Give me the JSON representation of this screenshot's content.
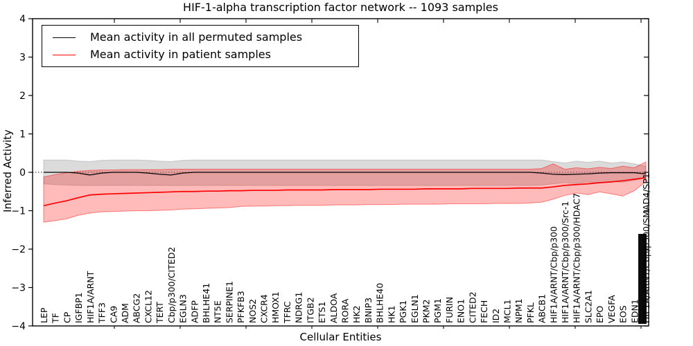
{
  "chart_data": {
    "type": "line",
    "title": "HIF-1-alpha transcription factor network -- 1093 samples",
    "xlabel": "Cellular Entities",
    "ylabel": "Inferred Activity",
    "ylim": [
      -4,
      4
    ],
    "y_ticks": [
      -4,
      -3,
      -2,
      -1,
      0,
      1,
      2,
      3,
      4
    ],
    "grid": "dotted horizontal line at y=0 only",
    "legend_position": "upper left",
    "x_tick_label_rotation_deg": 90,
    "categories": [
      "LEP",
      "TF",
      "CP",
      "IGFBP1",
      "HIF1A/ARNT",
      "TFF3",
      "CA9",
      "ADM",
      "ABCG2",
      "CXCL12",
      "TERT",
      "Cbp/p300/CITED2",
      "EGLN3",
      "ADFP",
      "BHLHE41",
      "NT5E",
      "SERPINE1",
      "PFKFB3",
      "NOS2",
      "CXCR4",
      "HMOX1",
      "TFRC",
      "NDRG1",
      "ITGB2",
      "ETS1",
      "ALDOA",
      "RORA",
      "HK2",
      "BNIP3",
      "BHLHE40",
      "HK1",
      "PGK1",
      "EGLN1",
      "PKM2",
      "PGM1",
      "FURIN",
      "ENO1",
      "CITED2",
      "FECH",
      "ID2",
      "MCL1",
      "NPM1",
      "PFKL",
      "ABCB1",
      "HIF1A/ARNT/Cbp/p300",
      "HIF1A/ARNT/Cbp/p300/Src-1",
      "HIF1A/ARNT/Cbp/p300/HDAC7",
      "SLC2A1",
      "EPO",
      "VEGFA",
      "EOS",
      "EDN1",
      "HIF1A/ARNT/Cbp/p300/SMAD4/SP1"
    ],
    "series": [
      {
        "name": "Mean activity in all permuted samples",
        "color": "#000000",
        "values": [
          0,
          0,
          0,
          -0.02,
          -0.07,
          -0.02,
          0,
          0,
          0,
          -0.02,
          -0.05,
          -0.07,
          -0.02,
          0,
          0,
          0,
          0,
          0,
          0,
          0,
          0,
          0,
          0,
          0,
          0,
          0,
          0,
          0,
          0,
          0,
          0,
          0,
          0,
          0,
          0,
          0,
          0,
          0,
          0,
          0,
          0,
          0,
          0,
          -0.02,
          -0.05,
          -0.06,
          -0.05,
          -0.04,
          -0.02,
          -0.01,
          -0.01,
          -0.01,
          -0.04
        ]
      },
      {
        "name": "Mean activity in patient samples",
        "color": "#ff0000",
        "values": [
          -0.87,
          -0.8,
          -0.74,
          -0.66,
          -0.59,
          -0.57,
          -0.56,
          -0.55,
          -0.54,
          -0.53,
          -0.52,
          -0.51,
          -0.5,
          -0.5,
          -0.49,
          -0.49,
          -0.48,
          -0.48,
          -0.47,
          -0.47,
          -0.47,
          -0.46,
          -0.46,
          -0.46,
          -0.46,
          -0.45,
          -0.45,
          -0.45,
          -0.45,
          -0.44,
          -0.44,
          -0.44,
          -0.44,
          -0.43,
          -0.43,
          -0.43,
          -0.43,
          -0.42,
          -0.42,
          -0.42,
          -0.42,
          -0.41,
          -0.41,
          -0.41,
          -0.38,
          -0.34,
          -0.32,
          -0.3,
          -0.27,
          -0.25,
          -0.22,
          -0.18,
          -0.14
        ]
      }
    ],
    "bands": [
      {
        "name": "permuted samples range",
        "color": "#aaaaaa",
        "opacity": 0.42,
        "upper": [
          0.32,
          0.32,
          0.32,
          0.29,
          0.28,
          0.31,
          0.32,
          0.32,
          0.32,
          0.31,
          0.29,
          0.28,
          0.31,
          0.32,
          0.32,
          0.32,
          0.32,
          0.32,
          0.32,
          0.32,
          0.32,
          0.32,
          0.32,
          0.32,
          0.32,
          0.32,
          0.32,
          0.32,
          0.32,
          0.32,
          0.32,
          0.32,
          0.32,
          0.32,
          0.32,
          0.32,
          0.32,
          0.32,
          0.32,
          0.32,
          0.32,
          0.32,
          0.32,
          0.32,
          0.28,
          0.24,
          0.29,
          0.26,
          0.29,
          0.24,
          0.27,
          0.22,
          0.16
        ],
        "lower": [
          -0.3,
          -0.32,
          -0.33,
          -0.34,
          -0.34,
          -0.34,
          -0.34,
          -0.34,
          -0.34,
          -0.34,
          -0.34,
          -0.34,
          -0.34,
          -0.34,
          -0.34,
          -0.34,
          -0.34,
          -0.34,
          -0.34,
          -0.34,
          -0.34,
          -0.34,
          -0.34,
          -0.34,
          -0.34,
          -0.34,
          -0.34,
          -0.34,
          -0.34,
          -0.34,
          -0.34,
          -0.34,
          -0.34,
          -0.34,
          -0.34,
          -0.34,
          -0.34,
          -0.34,
          -0.34,
          -0.34,
          -0.34,
          -0.34,
          -0.34,
          -0.33,
          -0.3,
          -0.27,
          -0.29,
          -0.25,
          -0.27,
          -0.24,
          -0.26,
          -0.21,
          -0.15
        ]
      },
      {
        "name": "patient samples range",
        "color": "#ff0000",
        "opacity": 0.27,
        "upper": [
          -0.12,
          -0.06,
          -0.01,
          0.03,
          0.05,
          0.06,
          0.06,
          0.07,
          0.07,
          0.07,
          0.07,
          0.08,
          0.08,
          0.08,
          0.08,
          0.08,
          0.08,
          0.08,
          0.08,
          0.08,
          0.08,
          0.08,
          0.08,
          0.08,
          0.08,
          0.08,
          0.08,
          0.08,
          0.08,
          0.08,
          0.08,
          0.08,
          0.08,
          0.08,
          0.08,
          0.08,
          0.08,
          0.08,
          0.08,
          0.08,
          0.08,
          0.08,
          0.08,
          0.1,
          0.22,
          0.08,
          0.12,
          0.09,
          0.13,
          0.1,
          0.16,
          0.12,
          0.27
        ],
        "lower": [
          -1.3,
          -1.26,
          -1.21,
          -1.12,
          -1.06,
          -1.03,
          -1.02,
          -1.01,
          -1.0,
          -1.0,
          -0.99,
          -0.98,
          -0.96,
          -0.95,
          -0.94,
          -0.93,
          -0.92,
          -0.89,
          -0.88,
          -0.88,
          -0.87,
          -0.87,
          -0.86,
          -0.86,
          -0.86,
          -0.85,
          -0.85,
          -0.85,
          -0.84,
          -0.84,
          -0.84,
          -0.83,
          -0.83,
          -0.83,
          -0.83,
          -0.82,
          -0.82,
          -0.82,
          -0.82,
          -0.81,
          -0.81,
          -0.81,
          -0.8,
          -0.78,
          -0.7,
          -0.6,
          -0.54,
          -0.58,
          -0.51,
          -0.56,
          -0.62,
          -0.48,
          -0.24
        ]
      }
    ],
    "overlapping_label_cluster": {
      "x_index": 52,
      "legible_label": "HIF1A/ARNT/Cbp/p300/SMAD4/SP1",
      "note": "many additional x labels overlap into an unreadable black streak at the right edge"
    }
  }
}
